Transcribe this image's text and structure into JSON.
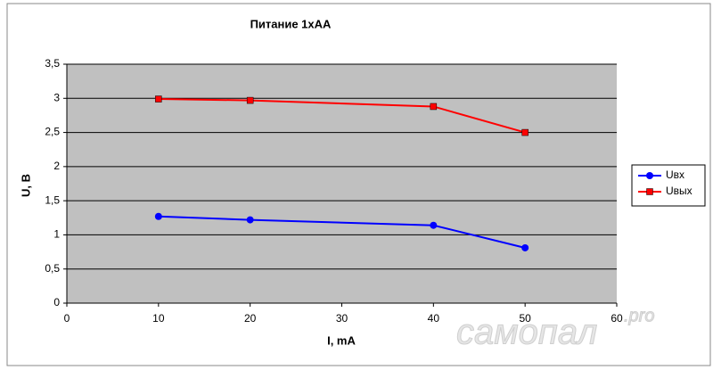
{
  "chart_data": {
    "type": "line",
    "title": "Питание 1хАА",
    "x_label": "I, mA",
    "y_label": "U, B",
    "x": [
      10,
      20,
      40,
      50
    ],
    "series": [
      {
        "name": "Uвх",
        "color": "#0000ff",
        "marker": "circle",
        "values": [
          1.27,
          1.22,
          1.14,
          0.81
        ]
      },
      {
        "name": "Uвых",
        "color": "#ff0000",
        "marker": "square",
        "values": [
          2.99,
          2.97,
          2.88,
          2.5
        ]
      }
    ],
    "xlim": [
      0,
      60
    ],
    "xticks": [
      0,
      10,
      20,
      30,
      40,
      50,
      60
    ],
    "ylim": [
      0,
      3.5
    ],
    "yticks": [
      0,
      {
        "value": 0.5,
        "label": "0,5"
      },
      1,
      {
        "value": 1.5,
        "label": "1,5"
      },
      2,
      {
        "value": 2.5,
        "label": "2,5"
      },
      3,
      {
        "value": 3.5,
        "label": "3,5"
      }
    ],
    "grid": true,
    "legend": "right",
    "watermark": "самопал",
    "watermark_suffix": ".pro"
  }
}
